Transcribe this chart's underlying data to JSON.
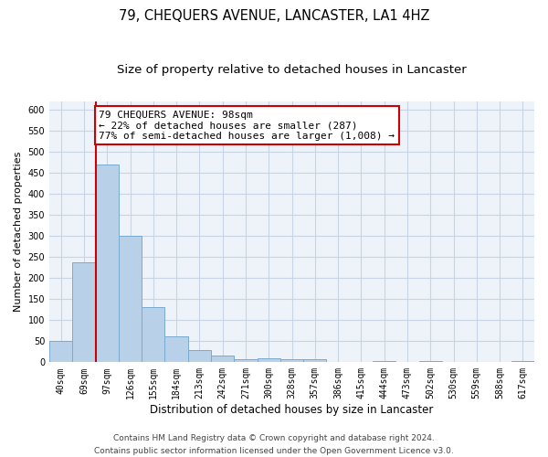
{
  "title": "79, CHEQUERS AVENUE, LANCASTER, LA1 4HZ",
  "subtitle": "Size of property relative to detached houses in Lancaster",
  "xlabel": "Distribution of detached houses by size in Lancaster",
  "ylabel": "Number of detached properties",
  "bar_labels": [
    "40sqm",
    "69sqm",
    "97sqm",
    "126sqm",
    "155sqm",
    "184sqm",
    "213sqm",
    "242sqm",
    "271sqm",
    "300sqm",
    "328sqm",
    "357sqm",
    "386sqm",
    "415sqm",
    "444sqm",
    "473sqm",
    "502sqm",
    "530sqm",
    "559sqm",
    "588sqm",
    "617sqm"
  ],
  "bar_values": [
    50,
    237,
    470,
    300,
    130,
    62,
    30,
    16,
    7,
    10,
    7,
    7,
    0,
    0,
    3,
    0,
    3,
    0,
    0,
    0,
    3
  ],
  "bar_color": "#b8d0e8",
  "bar_edge_color": "#7aaad0",
  "vline_x_index": 2,
  "vline_color": "#cc0000",
  "annotation_text": "79 CHEQUERS AVENUE: 98sqm\n← 22% of detached houses are smaller (287)\n77% of semi-detached houses are larger (1,008) →",
  "annotation_box_facecolor": "#ffffff",
  "annotation_box_edgecolor": "#cc0000",
  "ylim": [
    0,
    620
  ],
  "yticks": [
    0,
    50,
    100,
    150,
    200,
    250,
    300,
    350,
    400,
    450,
    500,
    550,
    600
  ],
  "footer_line1": "Contains HM Land Registry data © Crown copyright and database right 2024.",
  "footer_line2": "Contains public sector information licensed under the Open Government Licence v3.0.",
  "background_color": "#ffffff",
  "plot_bg_color": "#eef3fa",
  "grid_color": "#c8d4e4",
  "title_fontsize": 10.5,
  "subtitle_fontsize": 9.5,
  "xlabel_fontsize": 8.5,
  "ylabel_fontsize": 8,
  "tick_fontsize": 7,
  "annotation_fontsize": 8,
  "footer_fontsize": 6.5
}
